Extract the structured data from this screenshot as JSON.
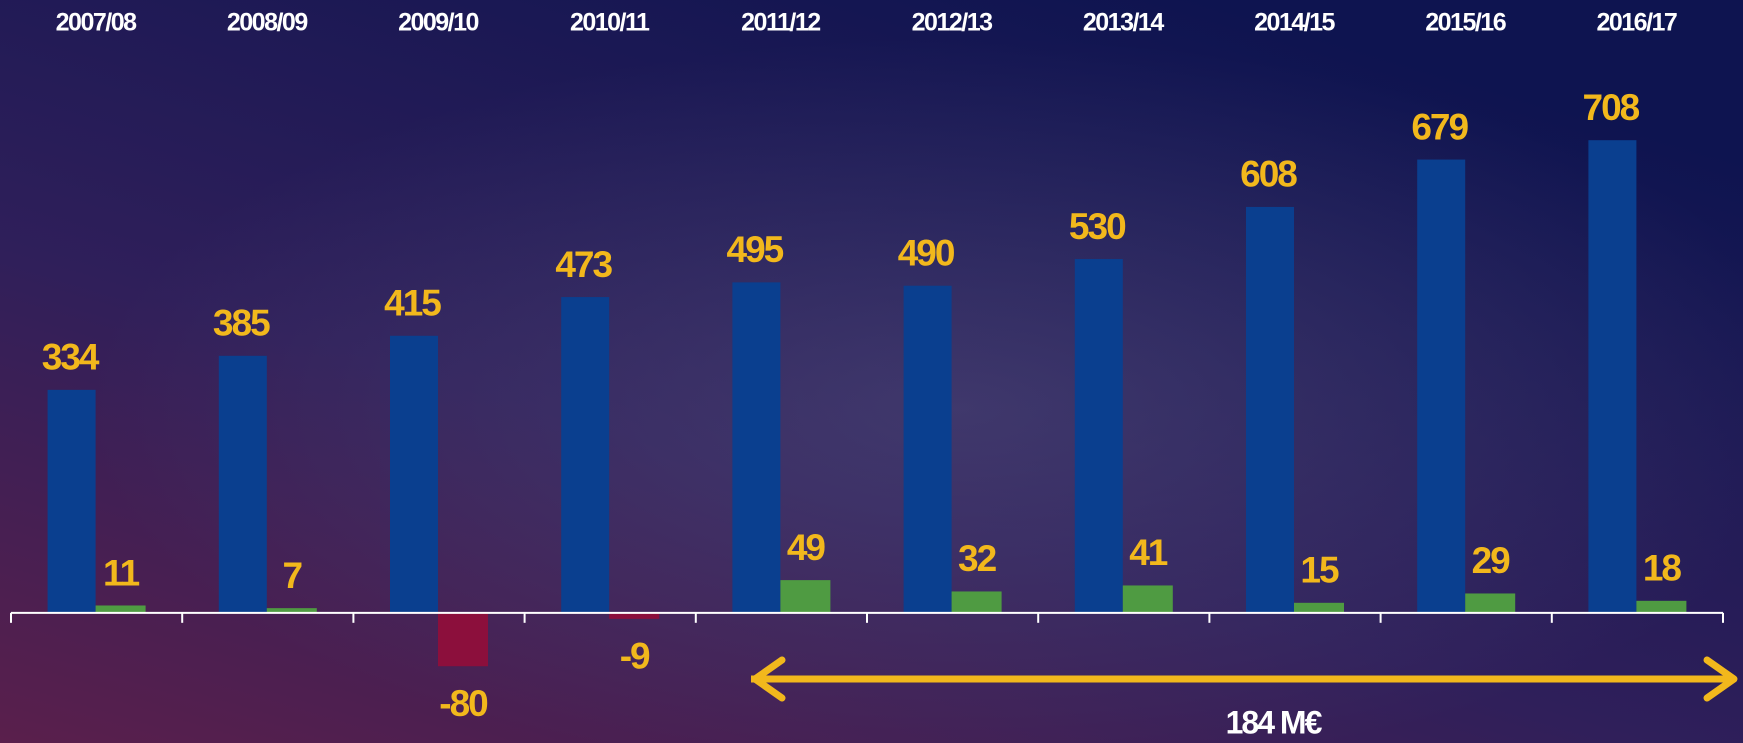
{
  "chart_data": {
    "type": "bar",
    "categories": [
      "2007/08",
      "2008/09",
      "2009/10",
      "2010/11",
      "2011/12",
      "2012/13",
      "2013/14",
      "2014/15",
      "2015/16",
      "2016/17"
    ],
    "series": [
      {
        "color": "#0a3f8f",
        "values": [
          334,
          385,
          415,
          473,
          495,
          490,
          530,
          608,
          679,
          708
        ]
      },
      {
        "color": "#4f9b42",
        "negative_color": "#8c0f3c",
        "values": [
          11,
          7,
          -80,
          -9,
          49,
          32,
          41,
          15,
          29,
          18
        ]
      }
    ],
    "ylim": [
      -195,
      918
    ],
    "grid": false,
    "annotation": "184 M€"
  }
}
